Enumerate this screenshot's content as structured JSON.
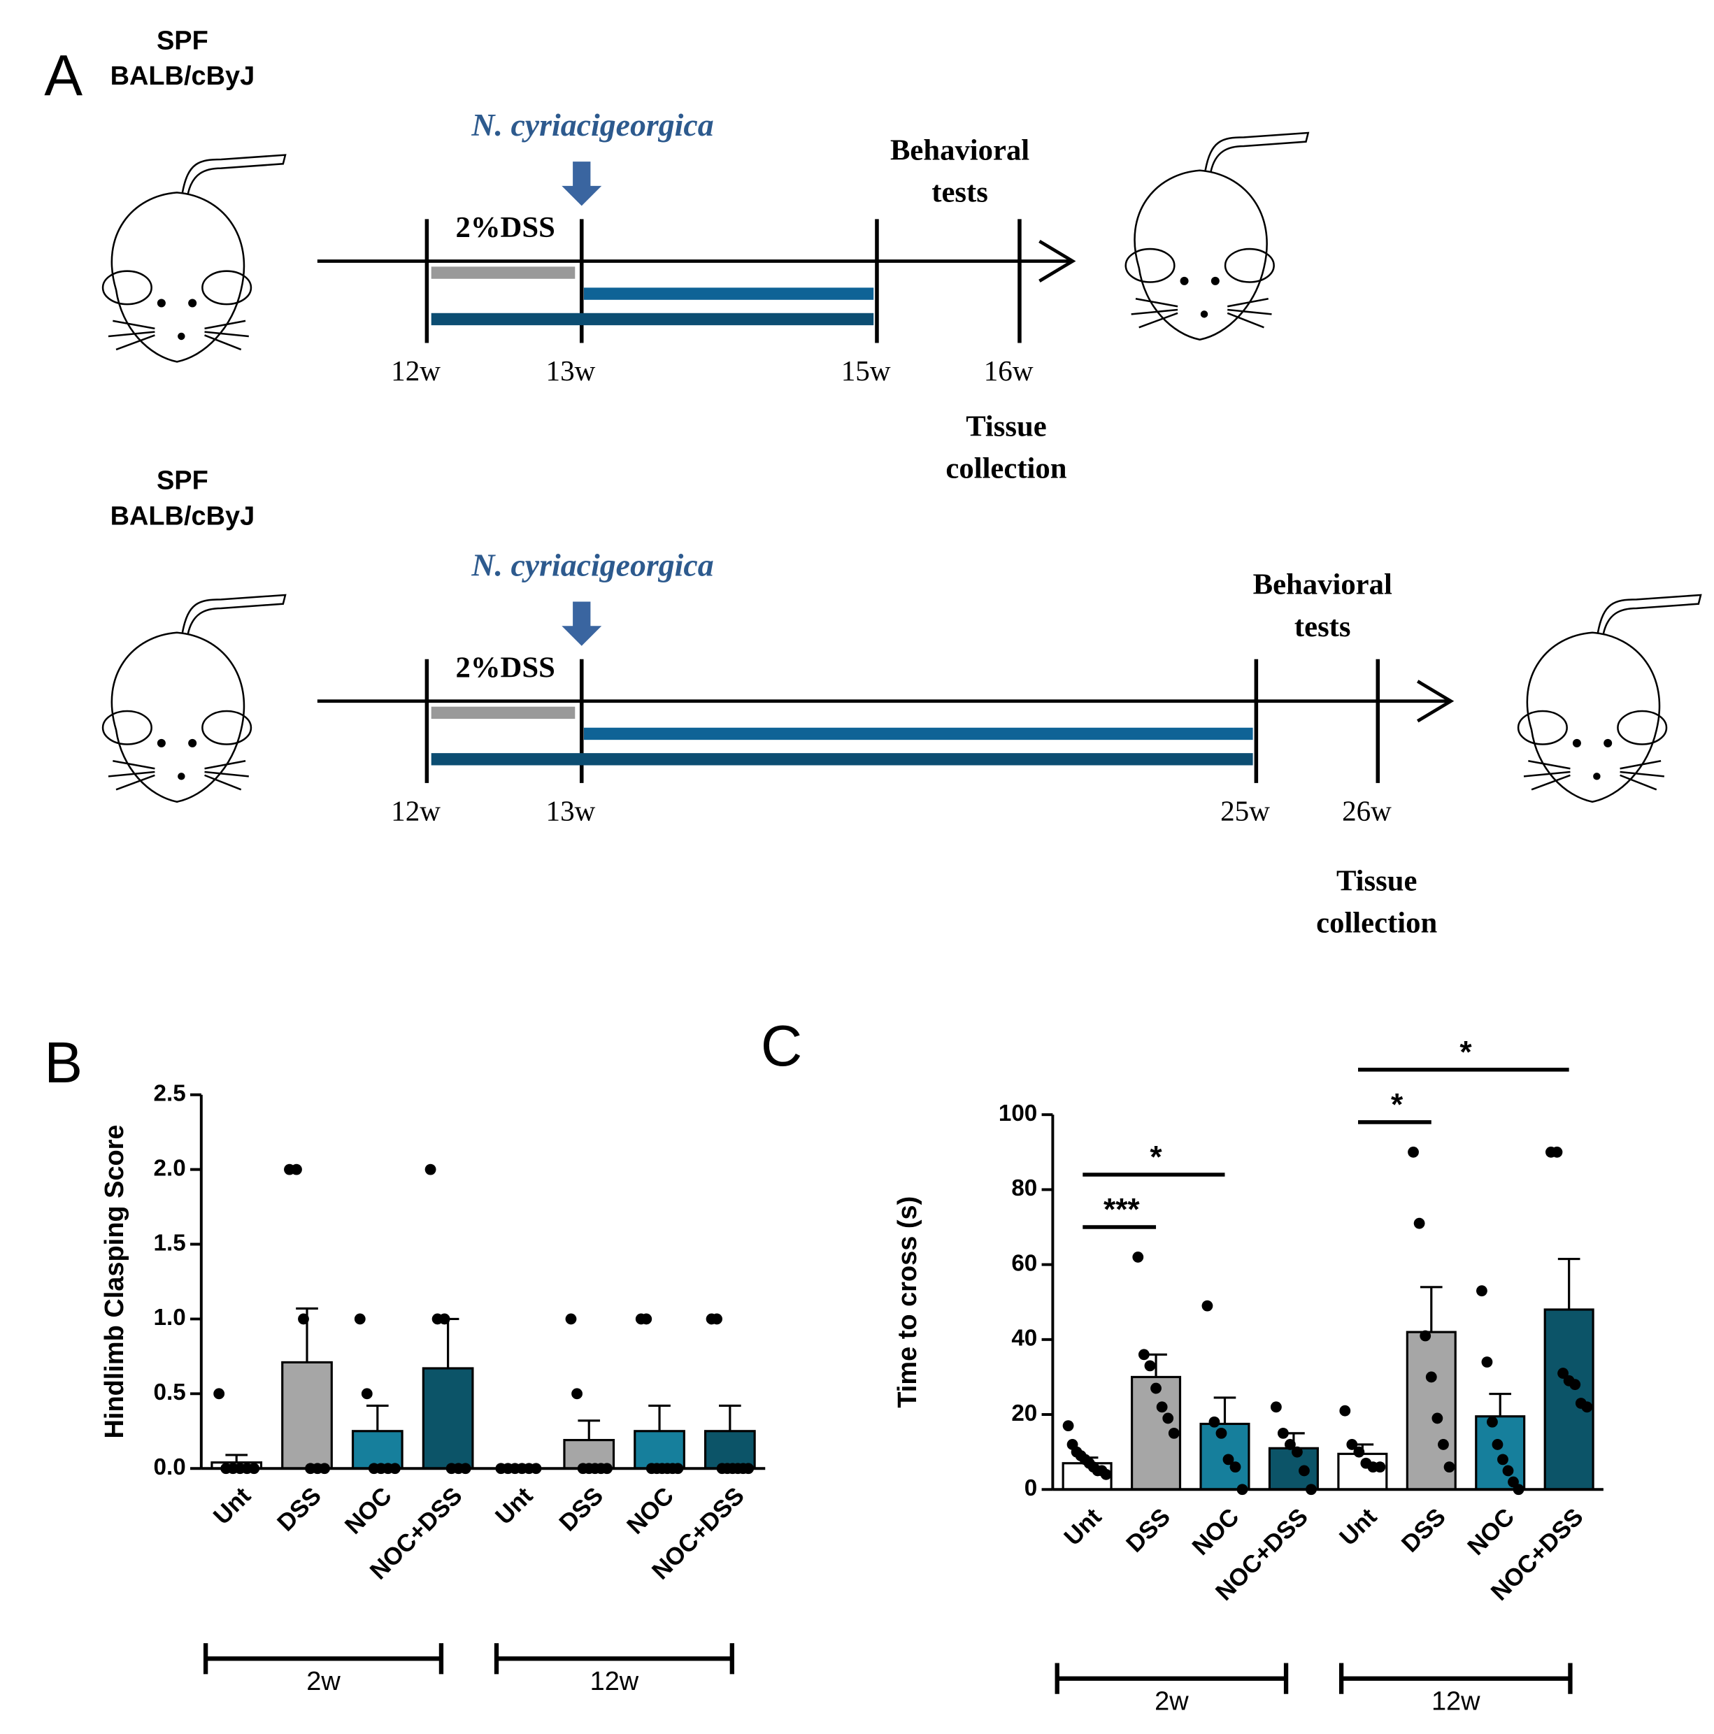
{
  "panel_a": {
    "label": "A",
    "timelines": [
      {
        "strain_lines": [
          "SPF",
          "BALB/cByJ"
        ],
        "treatment": "N. cyriacigeorgica",
        "dss": "2%DSS",
        "timepoints": [
          "12w",
          "13w",
          "15w",
          "16w"
        ],
        "behavioral": [
          "Behavioral",
          "tests"
        ],
        "tissue": [
          "Tissue",
          "collection"
        ]
      },
      {
        "strain_lines": [
          "SPF",
          "BALB/cByJ"
        ],
        "treatment": "N. cyriacigeorgica",
        "dss": "2%DSS",
        "timepoints": [
          "12w",
          "13w",
          "25w",
          "26w"
        ],
        "behavioral": [
          "Behavioral",
          "tests"
        ],
        "tissue": [
          "Tissue",
          "collection"
        ]
      }
    ]
  },
  "chart_data": [
    {
      "type": "bar",
      "label": "B",
      "ylabel": "Hindlimb Clasping Score",
      "categories": [
        "Unt",
        "DSS",
        "NOC",
        "NOC+DSS",
        "Unt",
        "DSS",
        "NOC",
        "NOC+DSS"
      ],
      "group_labels": [
        "2w",
        "12w"
      ],
      "values": [
        0.04,
        0.71,
        0.25,
        0.67,
        0,
        0.19,
        0.25,
        0.25
      ],
      "errors": [
        0.05,
        0.36,
        0.17,
        0.33,
        0,
        0.13,
        0.17,
        0.17
      ],
      "colors": [
        "#ffffff",
        "#a6a6a6",
        "#167f9c",
        "#0c5468",
        "#ffffff",
        "#a6a6a6",
        "#167f9c",
        "#0c5468"
      ],
      "points": [
        [
          0.5,
          0,
          0,
          0,
          0,
          0
        ],
        [
          2,
          2,
          1,
          0,
          0,
          0
        ],
        [
          1,
          0.5,
          0,
          0,
          0,
          0
        ],
        [
          2,
          1,
          1,
          0,
          0,
          0
        ],
        [
          0,
          0,
          0,
          0,
          0,
          0
        ],
        [
          1,
          0.5,
          0,
          0,
          0,
          0,
          0
        ],
        [
          1,
          1,
          0,
          0,
          0,
          0,
          0,
          0
        ],
        [
          1,
          1,
          0,
          0,
          0,
          0,
          0,
          0
        ]
      ],
      "ylim": [
        0,
        2.5
      ],
      "yticks": [
        {
          "value": 0,
          "label": "0.0"
        },
        {
          "value": 0.5,
          "label": "0.5"
        },
        {
          "value": 1,
          "label": "1.0"
        },
        {
          "value": 1.5,
          "label": "1.5"
        },
        {
          "value": 2,
          "label": "2.0"
        },
        {
          "value": 2.5,
          "label": "2.5"
        }
      ],
      "annotations": []
    },
    {
      "type": "bar",
      "label": "C",
      "ylabel": "Time to cross (s)",
      "categories": [
        "Unt",
        "DSS",
        "NOC",
        "NOC+DSS",
        "Unt",
        "DSS",
        "NOC",
        "NOC+DSS"
      ],
      "group_labels": [
        "2w",
        "12w"
      ],
      "values": [
        7,
        30,
        17.5,
        11,
        9.5,
        42,
        19.5,
        48
      ],
      "errors": [
        1.5,
        6,
        7,
        4,
        2.5,
        12,
        6,
        13.5
      ],
      "colors": [
        "#ffffff",
        "#a6a6a6",
        "#167f9c",
        "#0c5468",
        "#ffffff",
        "#a6a6a6",
        "#167f9c",
        "#0c5468"
      ],
      "points": [
        [
          17,
          12,
          10,
          9,
          8,
          7,
          6,
          5,
          5,
          4
        ],
        [
          62,
          36,
          33,
          27,
          22,
          19,
          15
        ],
        [
          49,
          18,
          15,
          8,
          6,
          0
        ],
        [
          22,
          15,
          12,
          10,
          5,
          0
        ],
        [
          21,
          12,
          10,
          7,
          6,
          6
        ],
        [
          90,
          71,
          41,
          30,
          19,
          12,
          6
        ],
        [
          53,
          34,
          18,
          12,
          8,
          5,
          2,
          0
        ],
        [
          90,
          90,
          31,
          29,
          28,
          23,
          22
        ]
      ],
      "ylim": [
        0,
        100
      ],
      "yticks": [
        0,
        20,
        40,
        60,
        80,
        100
      ],
      "annotations": [
        {
          "text": "***",
          "from": 0,
          "to": 1
        },
        {
          "text": "*",
          "from": 0,
          "to": 2
        },
        {
          "text": "*",
          "from": 4,
          "to": 5
        },
        {
          "text": "*",
          "from": 4,
          "to": 7
        }
      ]
    }
  ]
}
